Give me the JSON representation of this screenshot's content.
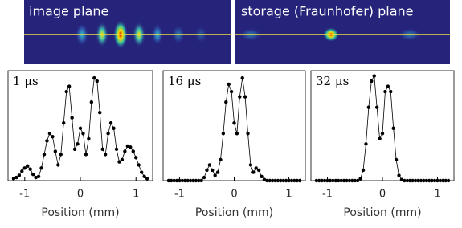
{
  "images": [
    {
      "label": "image plane"
    },
    {
      "label": "storage (Fraunhofer) plane"
    }
  ],
  "chart_data": [
    {
      "type": "line",
      "annotation": "1 μs",
      "xlabel": "Position (mm)",
      "color": "#000000",
      "xlim": [
        -1.3,
        1.3
      ],
      "ylim": [
        0,
        1.05
      ],
      "xticks": [
        -1,
        0,
        1
      ],
      "x": [
        -1.2,
        -1.15,
        -1.1,
        -1.05,
        -1,
        -0.95,
        -0.9,
        -0.85,
        -0.8,
        -0.75,
        -0.7,
        -0.65,
        -0.6,
        -0.55,
        -0.5,
        -0.45,
        -0.4,
        -0.35,
        -0.3,
        -0.25,
        -0.2,
        -0.15,
        -0.1,
        -0.05,
        0,
        0.05,
        0.1,
        0.15,
        0.2,
        0.25,
        0.3,
        0.35,
        0.4,
        0.45,
        0.5,
        0.55,
        0.6,
        0.65,
        0.7,
        0.75,
        0.8,
        0.85,
        0.9,
        0.95,
        1,
        1.05,
        1.1,
        1.15,
        1.2
      ],
      "values": [
        0.02,
        0.03,
        0.05,
        0.09,
        0.12,
        0.14,
        0.11,
        0.06,
        0.03,
        0.04,
        0.12,
        0.25,
        0.38,
        0.45,
        0.42,
        0.28,
        0.15,
        0.25,
        0.55,
        0.85,
        0.9,
        0.6,
        0.3,
        0.35,
        0.5,
        0.45,
        0.25,
        0.4,
        0.75,
        0.98,
        0.95,
        0.65,
        0.3,
        0.25,
        0.45,
        0.55,
        0.5,
        0.3,
        0.18,
        0.2,
        0.28,
        0.33,
        0.32,
        0.28,
        0.22,
        0.15,
        0.08,
        0.04,
        0.02
      ]
    },
    {
      "type": "line",
      "annotation": "16 μs",
      "xlabel": "Position (mm)",
      "color": "#000000",
      "xlim": [
        -1.3,
        1.3
      ],
      "ylim": [
        0,
        1.05
      ],
      "xticks": [
        -1,
        0,
        1
      ],
      "x": [
        -1.2,
        -1.15,
        -1.1,
        -1.05,
        -1,
        -0.95,
        -0.9,
        -0.85,
        -0.8,
        -0.75,
        -0.7,
        -0.65,
        -0.6,
        -0.55,
        -0.5,
        -0.45,
        -0.4,
        -0.35,
        -0.3,
        -0.25,
        -0.2,
        -0.15,
        -0.1,
        -0.05,
        0,
        0.05,
        0.1,
        0.15,
        0.2,
        0.25,
        0.3,
        0.35,
        0.4,
        0.45,
        0.5,
        0.55,
        0.6,
        0.65,
        0.7,
        0.75,
        0.8,
        0.85,
        0.9,
        0.95,
        1,
        1.05,
        1.1,
        1.15,
        1.2
      ],
      "values": [
        0,
        0,
        0,
        0,
        0,
        0,
        0,
        0,
        0,
        0,
        0,
        0,
        0,
        0.03,
        0.1,
        0.15,
        0.1,
        0.05,
        0.08,
        0.2,
        0.45,
        0.75,
        0.92,
        0.85,
        0.55,
        0.45,
        0.8,
        0.98,
        0.8,
        0.45,
        0.15,
        0.08,
        0.12,
        0.1,
        0.04,
        0.01,
        0,
        0,
        0,
        0,
        0,
        0,
        0,
        0,
        0,
        0,
        0,
        0,
        0
      ]
    },
    {
      "type": "line",
      "annotation": "32 μs",
      "xlabel": "Position (mm)",
      "color": "#000000",
      "xlim": [
        -1.3,
        1.3
      ],
      "ylim": [
        0,
        1.05
      ],
      "xticks": [
        -1,
        0,
        1
      ],
      "x": [
        -1.2,
        -1.15,
        -1.1,
        -1.05,
        -1,
        -0.95,
        -0.9,
        -0.85,
        -0.8,
        -0.75,
        -0.7,
        -0.65,
        -0.6,
        -0.55,
        -0.5,
        -0.45,
        -0.4,
        -0.35,
        -0.3,
        -0.25,
        -0.2,
        -0.15,
        -0.1,
        -0.05,
        0,
        0.05,
        0.1,
        0.15,
        0.2,
        0.25,
        0.3,
        0.35,
        0.4,
        0.45,
        0.5,
        0.55,
        0.6,
        0.65,
        0.7,
        0.75,
        0.8,
        0.85,
        0.9,
        0.95,
        1,
        1.05,
        1.1,
        1.15,
        1.2
      ],
      "values": [
        0,
        0,
        0,
        0,
        0,
        0,
        0,
        0,
        0,
        0,
        0,
        0,
        0,
        0,
        0,
        0,
        0.02,
        0.1,
        0.35,
        0.7,
        0.95,
        1,
        0.7,
        0.4,
        0.45,
        0.85,
        0.9,
        0.85,
        0.5,
        0.2,
        0.05,
        0.01,
        0,
        0,
        0,
        0,
        0,
        0,
        0,
        0,
        0,
        0,
        0,
        0,
        0,
        0,
        0,
        0,
        0
      ]
    }
  ]
}
